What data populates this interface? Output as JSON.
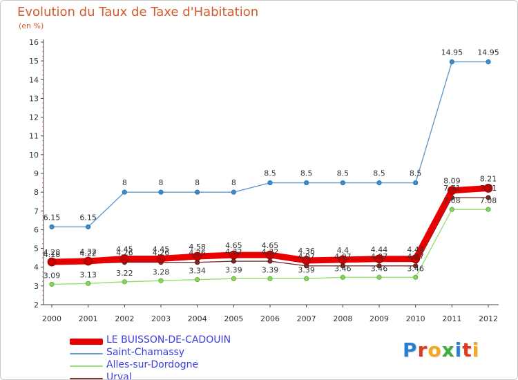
{
  "chart_data": {
    "type": "line",
    "title": "Evolution du Taux de Taxe d'Habitation",
    "subtitle": "(en %)",
    "x": [
      "2000",
      "2001",
      "2002",
      "2003",
      "2004",
      "2005",
      "2006",
      "2007",
      "2008",
      "2009",
      "2010",
      "2011",
      "2012"
    ],
    "y_ticks": [
      "2",
      "3",
      "4",
      "5",
      "6",
      "7",
      "8",
      "9",
      "10",
      "11",
      "12",
      "13",
      "14",
      "15",
      "16"
    ],
    "ylim": [
      2,
      16
    ],
    "grid": false,
    "legend_position": "bottom-left",
    "series": [
      {
        "name": "LE BUISSON-DE-CADOUIN",
        "color": "#e80000",
        "values": [
          4.28,
          4.32,
          4.45,
          4.45,
          4.58,
          4.65,
          4.65,
          4.36,
          4.4,
          4.44,
          4.44,
          8.09,
          8.21
        ],
        "labels": [
          "4.28",
          "4.32",
          "4.45",
          "4.45",
          "4.58",
          "4.65",
          "4.65",
          "4.36",
          "4.4",
          "4.44",
          "4.44",
          "8.09",
          "8.21"
        ]
      },
      {
        "name": "Saint-Chamassy",
        "color": "#6699cc",
        "values": [
          6.15,
          6.15,
          8,
          8,
          8,
          8,
          8.5,
          8.5,
          8.5,
          8.5,
          8.5,
          14.95,
          14.95
        ],
        "labels": [
          "6.15",
          "6.15",
          "8",
          "8",
          "8",
          "8",
          "8.5",
          "8.5",
          "8.5",
          "8.5",
          "8.5",
          "14.95",
          "14.95"
        ]
      },
      {
        "name": "Alles-sur-Dordogne",
        "color": "#99dd77",
        "values": [
          3.09,
          3.13,
          3.22,
          3.28,
          3.34,
          3.39,
          3.39,
          3.39,
          3.46,
          3.46,
          3.46,
          7.08,
          7.08
        ],
        "labels": [
          "3.09",
          "3.13",
          "3.22",
          "3.28",
          "3.34",
          "3.39",
          "3.39",
          "3.39",
          "3.46",
          "3.46",
          "3.46",
          "7.08",
          "7.08"
        ]
      },
      {
        "name": "Urval",
        "color": "#7a3333",
        "values": [
          4.18,
          4.22,
          4.26,
          4.26,
          4.26,
          4.32,
          4.32,
          4.07,
          4.07,
          4.07,
          4.07,
          7.71,
          7.71
        ],
        "labels": [
          "4.18",
          "4.22",
          "4.26",
          "4.26",
          "4.26",
          "4.32",
          "4.32",
          "4.07",
          "4.07",
          "4.07",
          "4.07",
          "7.71",
          "7.71"
        ]
      }
    ]
  },
  "logo": {
    "letters": [
      "P",
      "r",
      "o",
      "x",
      "i",
      "t",
      "i"
    ],
    "colors": [
      "#2a7fd4",
      "#e03a1e",
      "#f5a623",
      "#3cae3c",
      "#2a7fd4",
      "#e03a1e",
      "#f5a623"
    ]
  }
}
